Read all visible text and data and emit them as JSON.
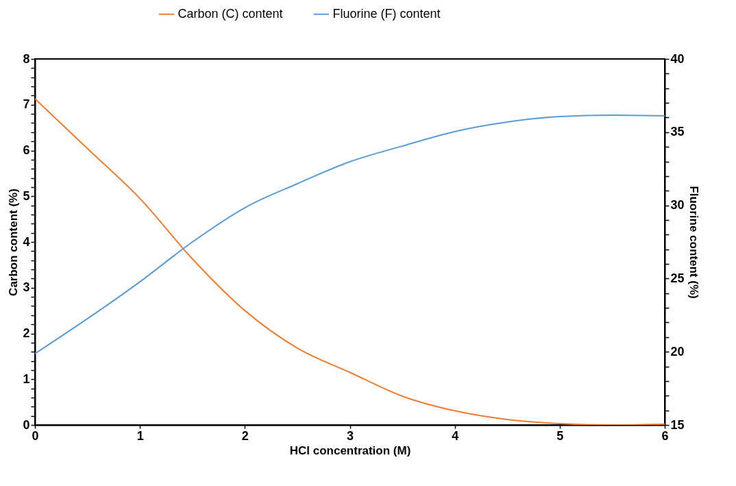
{
  "chart_data": {
    "type": "line",
    "xlabel": "HCl concentration (M)",
    "ylabel": "Carbon content (%)",
    "y2label": "Fluorine content (%)",
    "x": [
      0,
      0.5,
      1,
      1.5,
      2,
      2.5,
      3,
      3.5,
      4,
      4.5,
      5,
      5.5,
      6
    ],
    "series": [
      {
        "name": "Carbon (C) content",
        "color": "#ed7d31",
        "values": [
          7.13,
          6.04,
          4.95,
          3.63,
          2.5,
          1.68,
          1.15,
          0.63,
          0.31,
          0.12,
          0.03,
          0.0,
          0.02
        ]
      },
      {
        "name": "Fluorine (F) content",
        "color": "#5b9bd5",
        "axis": "y2",
        "values": [
          19.87,
          22.26,
          24.78,
          27.5,
          29.84,
          31.48,
          32.98,
          34.05,
          35.04,
          35.69,
          36.07,
          36.16,
          36.11
        ]
      }
    ],
    "xlim": [
      0,
      6
    ],
    "xticks": [
      0,
      1,
      2,
      3,
      4,
      5,
      6
    ],
    "ylim": [
      0,
      8
    ],
    "yticks": [
      0,
      {
        "value": 0.2,
        "label": null
      },
      {
        "value": 0.4,
        "label": null
      },
      {
        "value": 0.6,
        "label": null
      },
      {
        "value": 0.8,
        "label": null
      },
      1,
      {
        "value": 1.2,
        "label": null
      },
      {
        "value": 1.4,
        "label": null
      },
      {
        "value": 1.6,
        "label": null
      },
      {
        "value": 1.8,
        "label": null
      },
      2,
      {
        "value": 2.2,
        "label": null
      },
      {
        "value": 2.4,
        "label": null
      },
      {
        "value": 2.6,
        "label": null
      },
      {
        "value": 2.8,
        "label": null
      },
      3,
      {
        "value": 3.2,
        "label": null
      },
      {
        "value": 3.4,
        "label": null
      },
      {
        "value": 3.6,
        "label": null
      },
      {
        "value": 3.8,
        "label": null
      },
      4,
      {
        "value": 4.2,
        "label": null
      },
      {
        "value": 4.4,
        "label": null
      },
      {
        "value": 4.6,
        "label": null
      },
      {
        "value": 4.8,
        "label": null
      },
      5,
      {
        "value": 5.2,
        "label": null
      },
      {
        "value": 5.4,
        "label": null
      },
      {
        "value": 5.6,
        "label": null
      },
      {
        "value": 5.8,
        "label": null
      },
      6,
      {
        "value": 6.2,
        "label": null
      },
      {
        "value": 6.4,
        "label": null
      },
      {
        "value": 6.6,
        "label": null
      },
      {
        "value": 6.8,
        "label": null
      },
      7,
      {
        "value": 7.2,
        "label": null
      },
      {
        "value": 7.4,
        "label": null
      },
      {
        "value": 7.6,
        "label": null
      },
      {
        "value": 7.8,
        "label": null
      },
      8
    ],
    "y2lim": [
      15,
      40
    ],
    "y2ticks": [
      15,
      {
        "value": 16,
        "label": null
      },
      {
        "value": 17,
        "label": null
      },
      {
        "value": 18,
        "label": null
      },
      {
        "value": 19,
        "label": null
      },
      20,
      {
        "value": 21,
        "label": null
      },
      {
        "value": 22,
        "label": null
      },
      {
        "value": 23,
        "label": null
      },
      {
        "value": 24,
        "label": null
      },
      25,
      {
        "value": 26,
        "label": null
      },
      {
        "value": 27,
        "label": null
      },
      {
        "value": 28,
        "label": null
      },
      {
        "value": 29,
        "label": null
      },
      30,
      {
        "value": 31,
        "label": null
      },
      {
        "value": 32,
        "label": null
      },
      {
        "value": 33,
        "label": null
      },
      {
        "value": 34,
        "label": null
      },
      35,
      {
        "value": 36,
        "label": null
      },
      {
        "value": 37,
        "label": null
      },
      {
        "value": 38,
        "label": null
      },
      {
        "value": 39,
        "label": null
      },
      40
    ],
    "grid": false,
    "legend": "top",
    "marker": "none",
    "line_style": "solid"
  }
}
